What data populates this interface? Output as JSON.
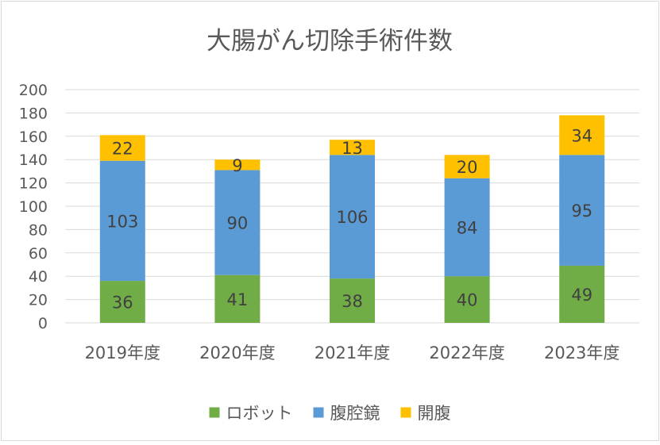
{
  "chart_data": {
    "type": "stacked-bar",
    "title": "大腸がん切除手術件数",
    "categories": [
      "2019年度",
      "2020年度",
      "2021年度",
      "2022年度",
      "2023年度"
    ],
    "series": [
      {
        "name": "ロボット",
        "color": "#70ad47",
        "values": [
          36,
          41,
          38,
          40,
          49
        ]
      },
      {
        "name": "腹腔鏡",
        "color": "#5b9bd5",
        "values": [
          103,
          90,
          106,
          84,
          95
        ]
      },
      {
        "name": "開腹",
        "color": "#ffc000",
        "values": [
          22,
          9,
          13,
          20,
          34
        ]
      }
    ],
    "ylim": [
      0,
      200
    ],
    "yticks": [
      0,
      20,
      40,
      60,
      80,
      100,
      120,
      140,
      160,
      180,
      200
    ],
    "grid": true,
    "legend_position": "bottom"
  }
}
